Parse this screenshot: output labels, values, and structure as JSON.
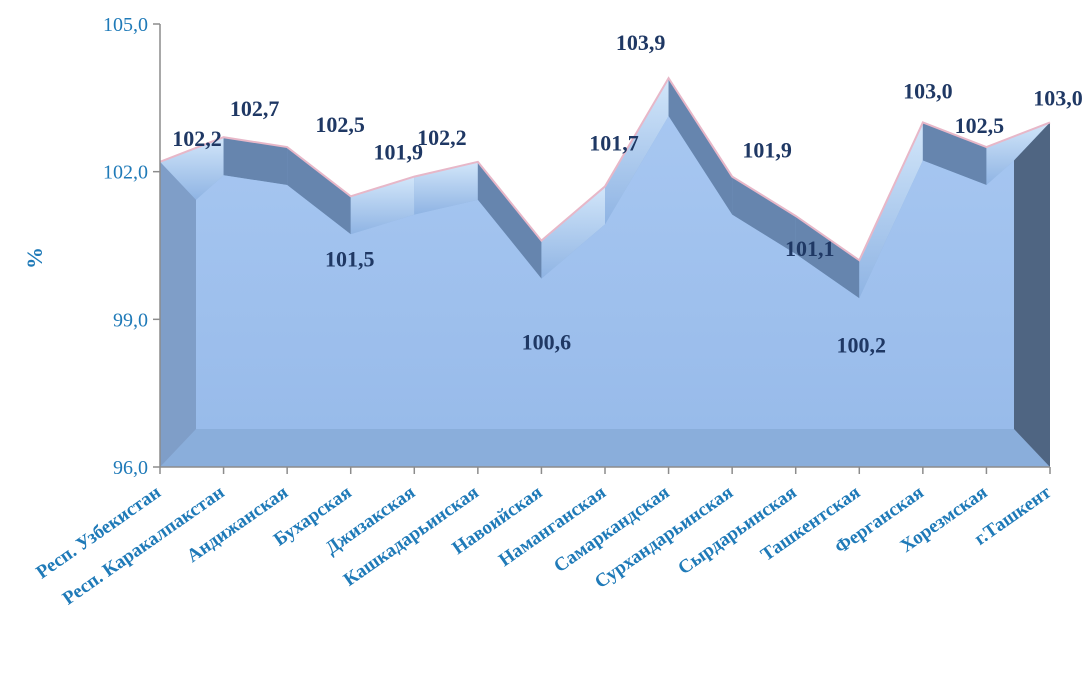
{
  "chart_data": {
    "type": "area",
    "title": "",
    "xlabel": "",
    "ylabel": "%",
    "ylim": [
      96.0,
      105.0
    ],
    "yticks": [
      "96,0",
      "99,0",
      "102,0",
      "105,0"
    ],
    "ytick_values": [
      96.0,
      99.0,
      102.0,
      105.0
    ],
    "categories": [
      "Респ. Узбекистан",
      "Респ. Каракалпакстан",
      "Андижанская",
      "Бухарская",
      "Джизакская",
      "Кашкадарьинская",
      "Навоийская",
      "Наманганская",
      "Самаркандская",
      "Сурхандарьинская",
      "Сырдарьинская",
      "Ташкентская",
      "Ферганская",
      "Хорезмская",
      "г.Ташкент"
    ],
    "values": [
      102.2,
      102.7,
      102.5,
      101.5,
      101.9,
      102.2,
      100.6,
      101.7,
      103.9,
      101.9,
      101.1,
      100.2,
      103.0,
      102.5,
      103.0
    ],
    "value_labels": [
      "102,2",
      "102,7",
      "102,5",
      "101,5",
      "101,9",
      "102,2",
      "100,6",
      "101,7",
      "103,9",
      "101,9",
      "101,1",
      "100,2",
      "103,0",
      "102,5",
      "103,0"
    ],
    "grid": false,
    "legend": "none",
    "style": "3d",
    "colors": {
      "front": "#9dbfee",
      "top": "#b8d8f8",
      "side": "#5f7ea6",
      "floor": "#4f6582",
      "edge": "#e7b7c8",
      "axis_text": "#1f7ab8",
      "value_text": "#1f3864"
    }
  }
}
